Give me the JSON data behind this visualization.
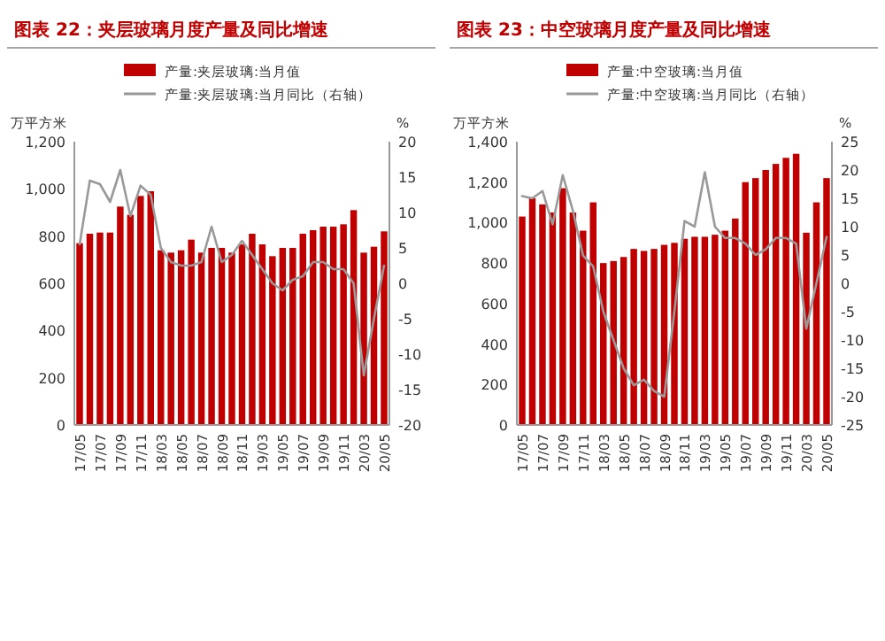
{
  "chart_data": [
    {
      "type": "bar",
      "title": "图表 22：夹层玻璃月度产量及同比增速",
      "ylabel": "万平方米",
      "y2label": "%",
      "categories": [
        "17/05",
        null,
        "17/07",
        null,
        "17/09",
        null,
        "17/11",
        null,
        "18/03",
        null,
        "18/05",
        null,
        "18/07",
        null,
        "18/09",
        null,
        "18/11",
        null,
        "19/03",
        null,
        "19/05",
        null,
        "19/07",
        null,
        "19/09",
        null,
        "19/11",
        null,
        "20/03",
        null,
        "20/05"
      ],
      "series": [
        {
          "name": "产量:夹层玻璃:当月值",
          "color": "#c00000",
          "values": [
            770,
            810,
            815,
            815,
            925,
            890,
            970,
            990,
            740,
            730,
            740,
            785,
            730,
            750,
            750,
            730,
            765,
            810,
            765,
            715,
            750,
            750,
            810,
            825,
            840,
            840,
            850,
            910,
            730,
            755,
            820
          ]
        },
        {
          "name": "产量:夹层玻璃:当月同比（右轴）",
          "type": "line",
          "axis": "y2",
          "color": "#999999",
          "values": [
            5.5,
            14.5,
            14,
            11.5,
            16,
            9.5,
            13.8,
            12.5,
            5,
            3,
            2.5,
            2.5,
            3,
            8,
            3,
            4,
            6,
            4,
            2,
            0,
            -1,
            0.5,
            1,
            3,
            3,
            2,
            2,
            0,
            -13,
            -5,
            2.5
          ]
        }
      ],
      "ylim": [
        0,
        1200
      ],
      "yticks": [
        0,
        200,
        400,
        600,
        800,
        {
          "value": 1000,
          "label": "1,000"
        },
        {
          "value": 1200,
          "label": "1,200"
        }
      ],
      "y2lim": [
        -20,
        20
      ],
      "y2ticks": [
        -20,
        -15,
        -10,
        -5,
        0,
        5,
        10,
        15,
        20
      ],
      "legend": "top",
      "grid": false
    },
    {
      "type": "bar",
      "title": "图表 23：中空玻璃月度产量及同比增速",
      "ylabel": "万平方米",
      "y2label": "%",
      "categories": [
        "17/05",
        null,
        "17/07",
        null,
        "17/09",
        null,
        "17/11",
        null,
        "18/03",
        null,
        "18/05",
        null,
        "18/07",
        null,
        "18/09",
        null,
        "18/11",
        null,
        "19/03",
        null,
        "19/05",
        null,
        "19/07",
        null,
        "19/09",
        null,
        "19/11",
        null,
        "20/03",
        null,
        "20/05"
      ],
      "series": [
        {
          "name": "产量:中空玻璃:当月值",
          "color": "#c00000",
          "values": [
            1030,
            1120,
            1090,
            1050,
            1170,
            1050,
            960,
            1100,
            800,
            810,
            830,
            870,
            860,
            870,
            890,
            900,
            920,
            930,
            930,
            940,
            960,
            1020,
            1200,
            1220,
            1260,
            1290,
            1320,
            1340,
            950,
            1100,
            1220
          ]
        },
        {
          "name": "产量:中空玻璃:当月同比（右轴）",
          "type": "line",
          "axis": "y2",
          "color": "#999999",
          "values": [
            15.4,
            15,
            16.3,
            10.4,
            19.1,
            12.8,
            4.9,
            3,
            -5,
            -10,
            -15,
            -18,
            -17,
            -19,
            -20,
            -5,
            11,
            10,
            19.6,
            10,
            8,
            8,
            7,
            5,
            6,
            8,
            8,
            7,
            -8,
            0,
            8.2
          ]
        }
      ],
      "ylim": [
        0,
        1400
      ],
      "yticks": [
        0,
        200,
        400,
        600,
        800,
        {
          "value": 1000,
          "label": "1,000"
        },
        {
          "value": 1200,
          "label": "1,200"
        },
        {
          "value": 1400,
          "label": "1,400"
        }
      ],
      "y2lim": [
        -25,
        25
      ],
      "y2ticks": [
        -25,
        -20,
        -15,
        -10,
        -5,
        0,
        5,
        10,
        15,
        20,
        25
      ],
      "legend": "top",
      "grid": false
    }
  ]
}
